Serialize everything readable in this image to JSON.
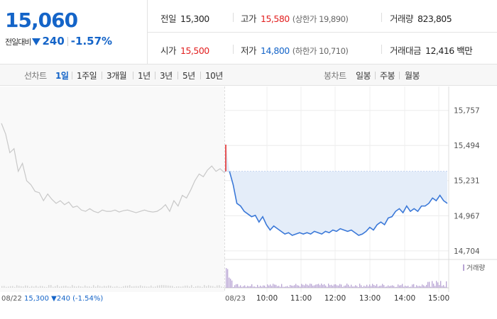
{
  "summary": {
    "price": "15,060",
    "change_label": "전일대비",
    "change_amount": "240",
    "change_pct": "-1.57%"
  },
  "stats": {
    "prev_close": {
      "label": "전일",
      "value": "15,300"
    },
    "high": {
      "label": "고가",
      "value": "15,580",
      "sub": "(상한가 19,890)"
    },
    "volume": {
      "label": "거래량",
      "value": "823,805"
    },
    "open": {
      "label": "시가",
      "value": "15,500"
    },
    "low": {
      "label": "저가",
      "value": "14,800",
      "sub": "(하한가 10,710)"
    },
    "turnover": {
      "label": "거래대금",
      "value": "12,416 백만"
    }
  },
  "toolbar": {
    "line_chart_label": "선차트",
    "ranges": [
      "1일",
      "1주일",
      "3개월",
      "1년",
      "3년",
      "5년",
      "10년"
    ],
    "active_range": "1일",
    "candle_chart_label": "봉차트",
    "candle_options": [
      "일봉",
      "주봉",
      "월봉"
    ]
  },
  "colors": {
    "accent_blue": "#1464c8",
    "price_up_red": "#e21f1f",
    "prev_day_line": "#c8c8c8",
    "intraday_line": "#3a78d8",
    "fill_below_prev_close": "#e4edf9",
    "volume_bar": "#b8a4d4"
  },
  "chart_data": {
    "type": "line",
    "y_ticks": [
      "15,757",
      "15,494",
      "15,231",
      "14,967",
      "14,704"
    ],
    "y_range": [
      14650,
      15830
    ],
    "prev_close_value": 15300,
    "x_labels": [
      "08/22",
      "08/23",
      "10:00",
      "11:00",
      "12:00",
      "13:00",
      "14:00",
      "15:00"
    ],
    "prev_day_caption": {
      "date": "08/22",
      "price": "15,300",
      "change": "240",
      "pct": "(-1.54%)"
    },
    "volume_legend": "거래량",
    "prev_day_series": [
      15660,
      15580,
      15440,
      15470,
      15300,
      15360,
      15230,
      15200,
      15150,
      15140,
      15080,
      15130,
      15090,
      15060,
      15080,
      15050,
      15070,
      15030,
      15040,
      15010,
      15000,
      15020,
      15000,
      14990,
      15010,
      15000,
      15000,
      15010,
      14995,
      15005,
      15010,
      15000,
      14990,
      15000,
      15010,
      15000,
      14995,
      15000,
      15020,
      15050,
      15000,
      15080,
      15040,
      15120,
      15100,
      15160,
      15230,
      15280,
      15260,
      15310,
      15340,
      15300,
      15320,
      15290
    ],
    "intraday_series": [
      15500,
      15300,
      15200,
      15060,
      15040,
      15000,
      14980,
      14960,
      14970,
      14920,
      14960,
      14900,
      14860,
      14890,
      14870,
      14850,
      14830,
      14840,
      14820,
      14830,
      14840,
      14830,
      14840,
      14830,
      14850,
      14840,
      14830,
      14850,
      14840,
      14860,
      14850,
      14870,
      14860,
      14850,
      14860,
      14840,
      14820,
      14830,
      14850,
      14880,
      14860,
      14900,
      14920,
      14900,
      14950,
      14960,
      15000,
      15020,
      14990,
      15040,
      15000,
      15020,
      15000,
      15040,
      15040,
      15060,
      15100,
      15080,
      15120,
      15080,
      15060
    ]
  }
}
